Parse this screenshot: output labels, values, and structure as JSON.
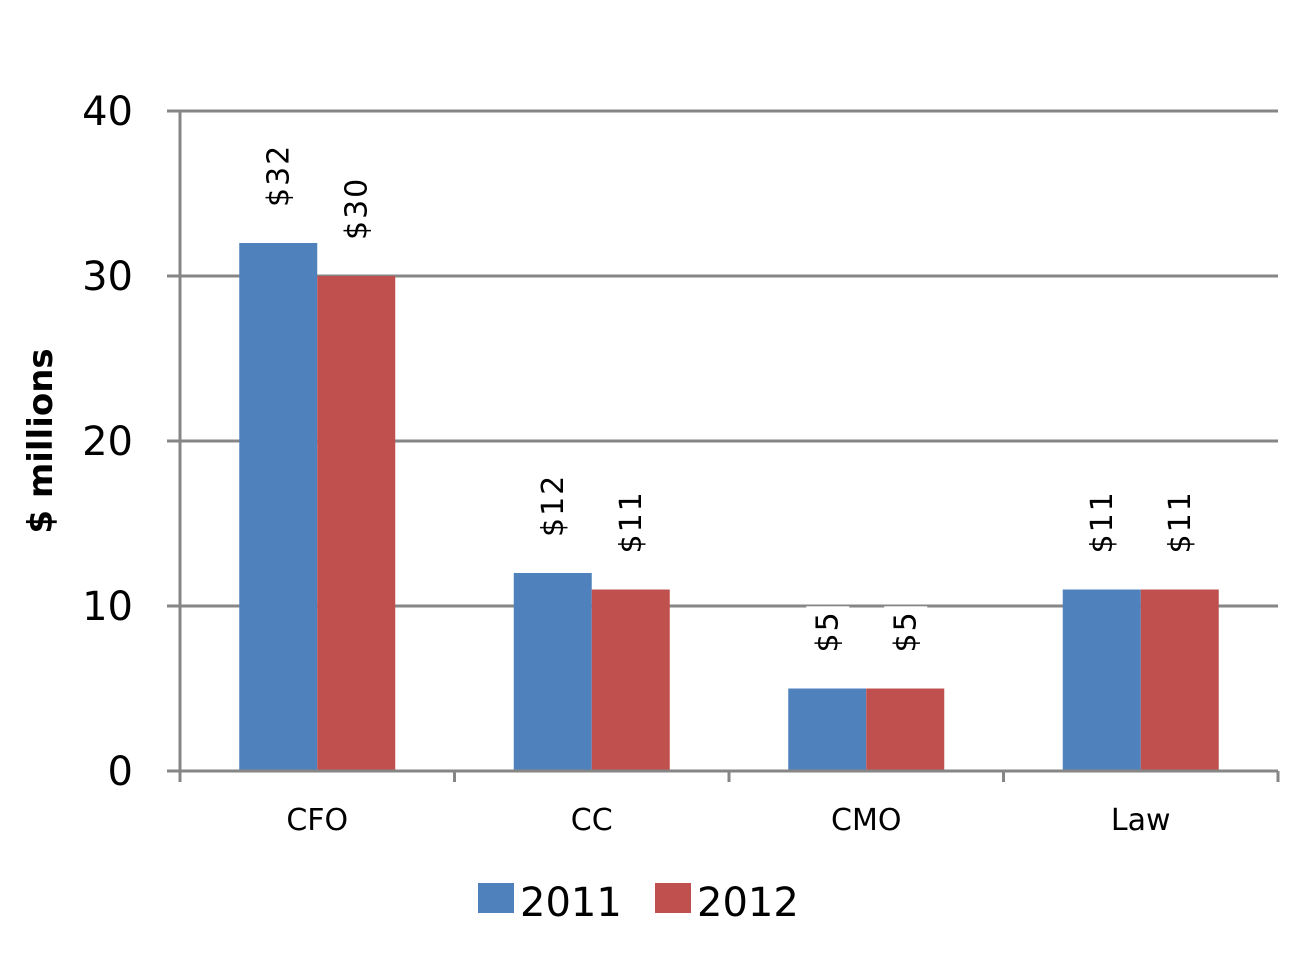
{
  "chart_data": {
    "type": "bar",
    "title": "",
    "xlabel": "",
    "ylabel": "$ millions",
    "ylim": [
      0,
      40
    ],
    "yticks": [
      "0",
      "10",
      "20",
      "30",
      "40"
    ],
    "grid": true,
    "legend_position": "bottom",
    "categories": [
      "CFO",
      "CC",
      "CMO",
      "Law"
    ],
    "series": [
      {
        "name": "2011",
        "color": "#4F81BD",
        "values": [
          32,
          12,
          5,
          11
        ],
        "labels": [
          "$32",
          "$12",
          "$5",
          "$11"
        ]
      },
      {
        "name": "2012",
        "color": "#C0504D",
        "values": [
          30,
          11,
          5,
          11
        ],
        "labels": [
          "$30",
          "$11",
          "$5",
          "$11"
        ]
      }
    ]
  }
}
